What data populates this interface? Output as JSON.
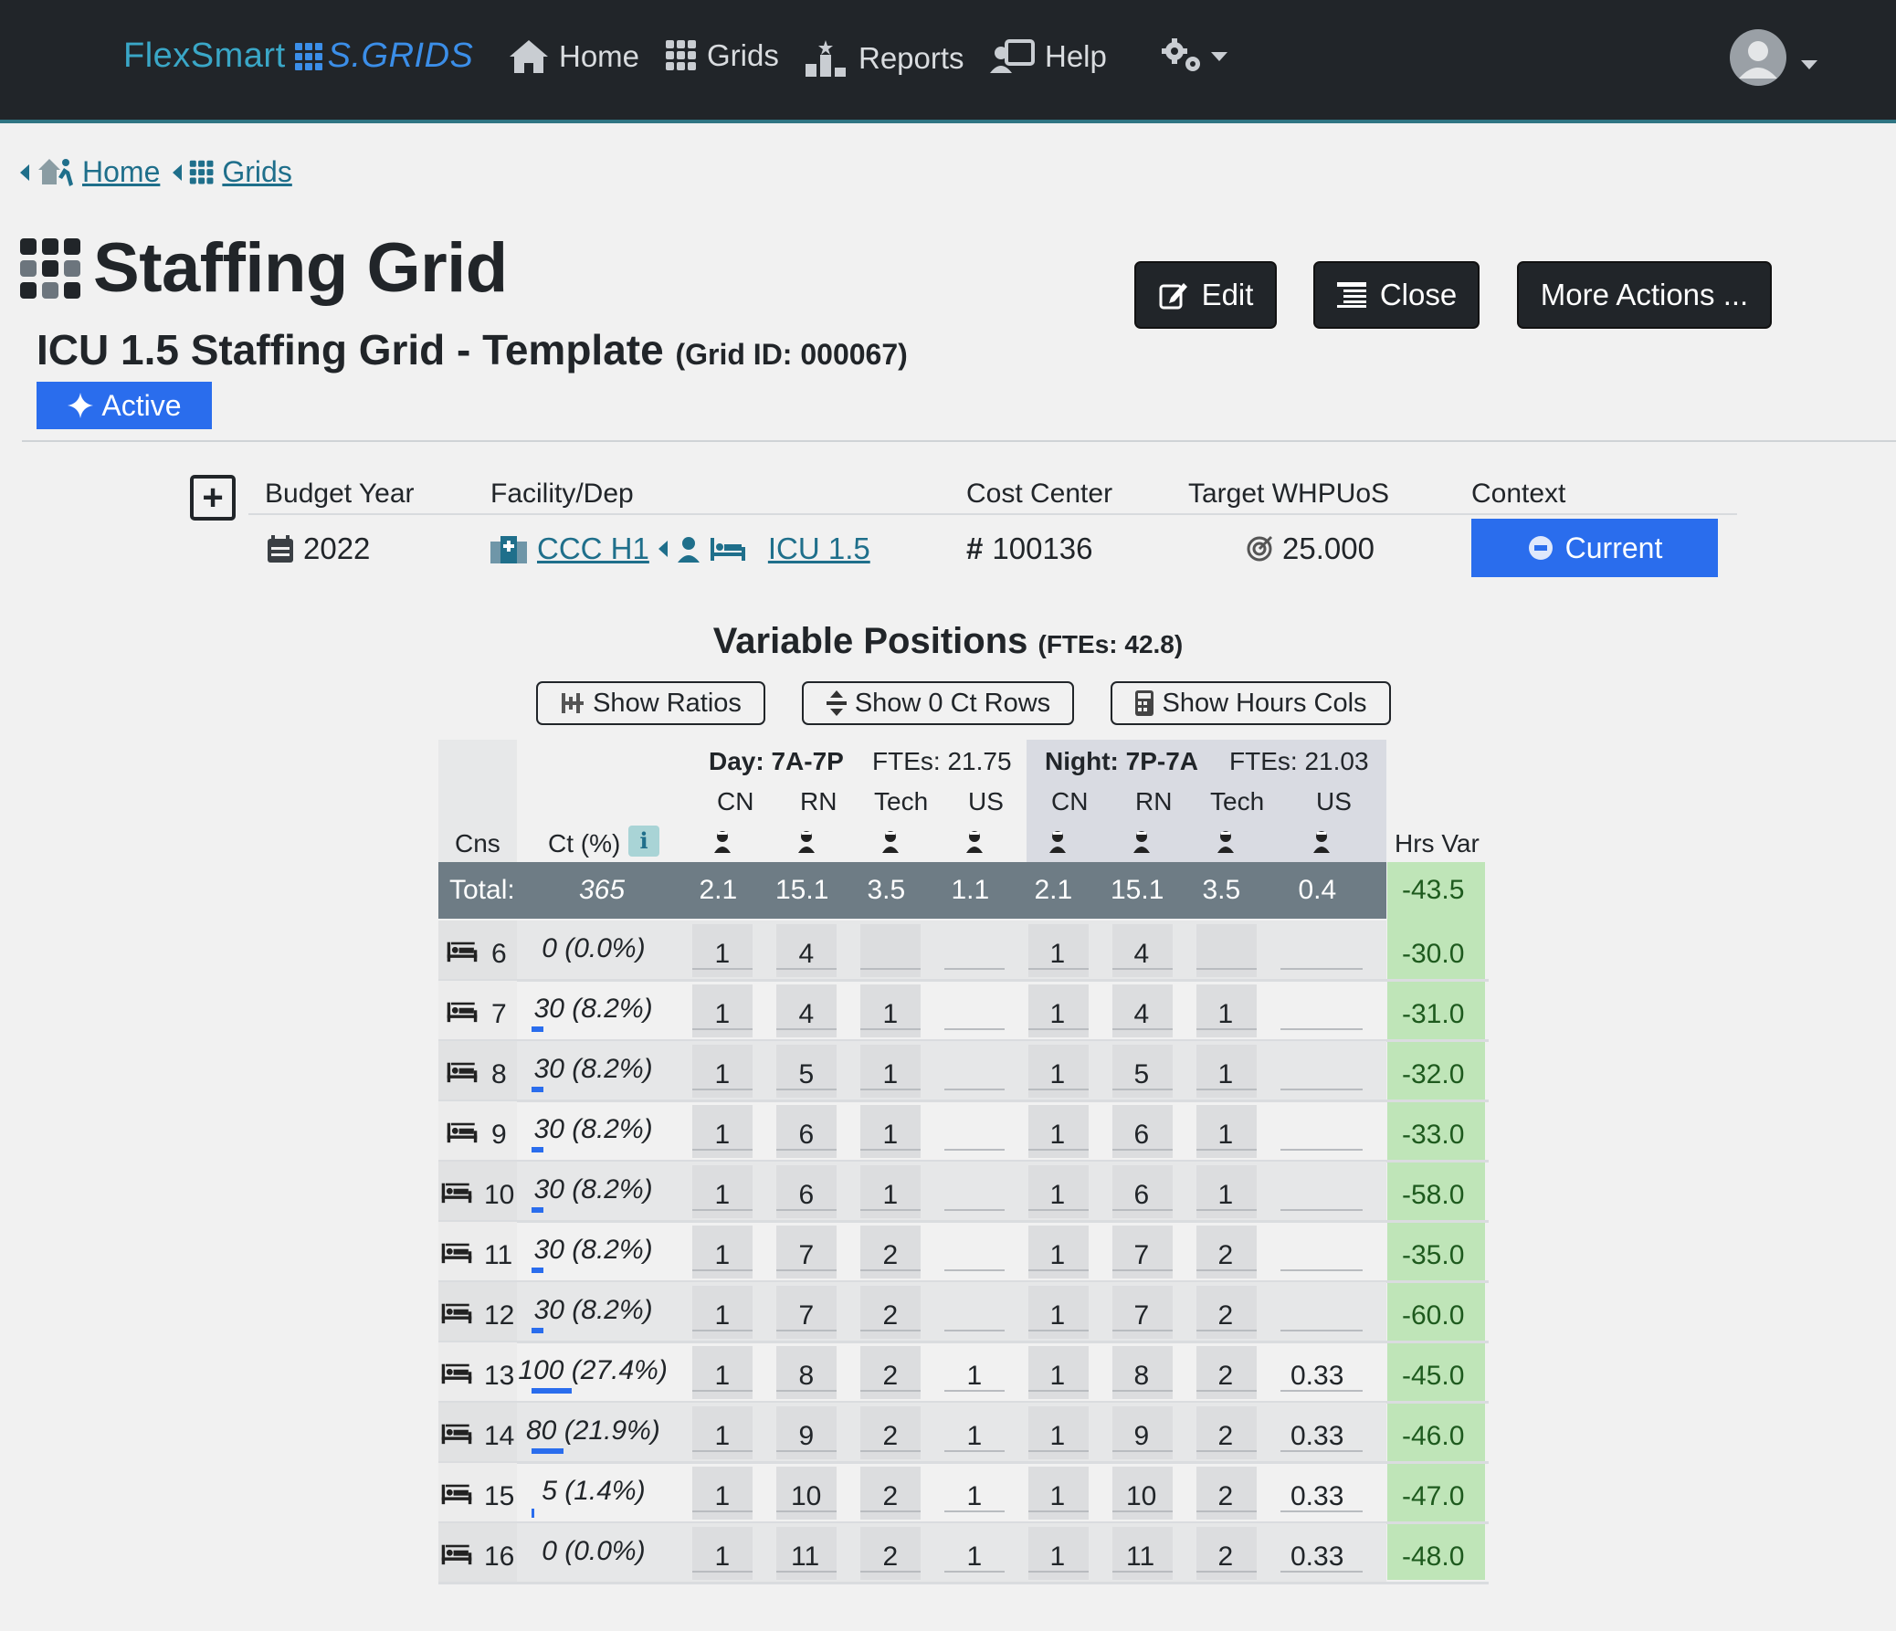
{
  "navbar": {
    "brand_part1": "FlexSmart",
    "brand_part2": "S.GRIDS",
    "items": [
      {
        "label": "Home",
        "icon": "home-icon"
      },
      {
        "label": "Grids",
        "icon": "grid-icon"
      },
      {
        "label": "Reports",
        "icon": "reports-icon"
      },
      {
        "label": "Help",
        "icon": "help-icon"
      }
    ],
    "settings_icon": "gears-icon",
    "user_icon": "user-avatar-icon"
  },
  "breadcrumb": {
    "home": "Home",
    "grids": "Grids"
  },
  "page": {
    "title": "Staffing Grid",
    "subtitle": "ICU 1.5 Staffing Grid - Template",
    "grid_id": "(Grid ID: 000067)",
    "status_badge": "Active"
  },
  "actions": {
    "edit": "Edit",
    "close": "Close",
    "more": "More Actions ..."
  },
  "info": {
    "headers": {
      "budget_year": "Budget Year",
      "facility": "Facility/Dep",
      "cost_center": "Cost Center",
      "target": "Target WHPUoS",
      "context": "Context"
    },
    "budget_year": "2022",
    "facility": "CCC H1",
    "department": "ICU 1.5",
    "cost_center": "100136",
    "target": "25.000",
    "context": "Current"
  },
  "variable_positions": {
    "title": "Variable Positions",
    "ftes": "(FTEs: 42.8)",
    "buttons": {
      "ratios": "Show Ratios",
      "zero_rows": "Show 0 Ct Rows",
      "hours_cols": "Show Hours Cols"
    }
  },
  "grid": {
    "day_label": "Day: 7A-7P",
    "day_ftes": "FTEs: 21.75",
    "night_label": "Night: 7P-7A",
    "night_ftes": "FTEs: 21.03",
    "roles": [
      "CN",
      "RN",
      "Tech",
      "US"
    ],
    "col_cns": "Cns",
    "col_ct": "Ct (%)",
    "col_hrsvar": "Hrs Var",
    "info_icon": "i",
    "total_label": "Total:",
    "total_ct": "365",
    "totals": [
      "2.1",
      "15.1",
      "3.5",
      "1.1",
      "2.1",
      "15.1",
      "3.5",
      "0.4"
    ],
    "total_hrsvar": "-43.5",
    "rows": [
      {
        "cns": "6",
        "ct": "0 (0.0%)",
        "pct": 0.0,
        "day": [
          "1",
          "4",
          "",
          ""
        ],
        "night": [
          "1",
          "4",
          "",
          ""
        ],
        "hrsvar": "-30.0"
      },
      {
        "cns": "7",
        "ct": "30 (8.2%)",
        "pct": 8.2,
        "day": [
          "1",
          "4",
          "1",
          ""
        ],
        "night": [
          "1",
          "4",
          "1",
          ""
        ],
        "hrsvar": "-31.0"
      },
      {
        "cns": "8",
        "ct": "30 (8.2%)",
        "pct": 8.2,
        "day": [
          "1",
          "5",
          "1",
          ""
        ],
        "night": [
          "1",
          "5",
          "1",
          ""
        ],
        "hrsvar": "-32.0"
      },
      {
        "cns": "9",
        "ct": "30 (8.2%)",
        "pct": 8.2,
        "day": [
          "1",
          "6",
          "1",
          ""
        ],
        "night": [
          "1",
          "6",
          "1",
          ""
        ],
        "hrsvar": "-33.0"
      },
      {
        "cns": "10",
        "ct": "30 (8.2%)",
        "pct": 8.2,
        "day": [
          "1",
          "6",
          "1",
          ""
        ],
        "night": [
          "1",
          "6",
          "1",
          ""
        ],
        "hrsvar": "-58.0"
      },
      {
        "cns": "11",
        "ct": "30 (8.2%)",
        "pct": 8.2,
        "day": [
          "1",
          "7",
          "2",
          ""
        ],
        "night": [
          "1",
          "7",
          "2",
          ""
        ],
        "hrsvar": "-35.0"
      },
      {
        "cns": "12",
        "ct": "30 (8.2%)",
        "pct": 8.2,
        "day": [
          "1",
          "7",
          "2",
          ""
        ],
        "night": [
          "1",
          "7",
          "2",
          ""
        ],
        "hrsvar": "-60.0"
      },
      {
        "cns": "13",
        "ct": "100 (27.4%)",
        "pct": 27.4,
        "day": [
          "1",
          "8",
          "2",
          "1"
        ],
        "night": [
          "1",
          "8",
          "2",
          "0.33"
        ],
        "hrsvar": "-45.0"
      },
      {
        "cns": "14",
        "ct": "80 (21.9%)",
        "pct": 21.9,
        "day": [
          "1",
          "9",
          "2",
          "1"
        ],
        "night": [
          "1",
          "9",
          "2",
          "0.33"
        ],
        "hrsvar": "-46.0"
      },
      {
        "cns": "15",
        "ct": "5 (1.4%)",
        "pct": 1.4,
        "day": [
          "1",
          "10",
          "2",
          "1"
        ],
        "night": [
          "1",
          "10",
          "2",
          "0.33"
        ],
        "hrsvar": "-47.0"
      },
      {
        "cns": "16",
        "ct": "0 (0.0%)",
        "pct": 0.0,
        "day": [
          "1",
          "11",
          "2",
          "1"
        ],
        "night": [
          "1",
          "11",
          "2",
          "0.33"
        ],
        "hrsvar": "-48.0"
      }
    ]
  }
}
